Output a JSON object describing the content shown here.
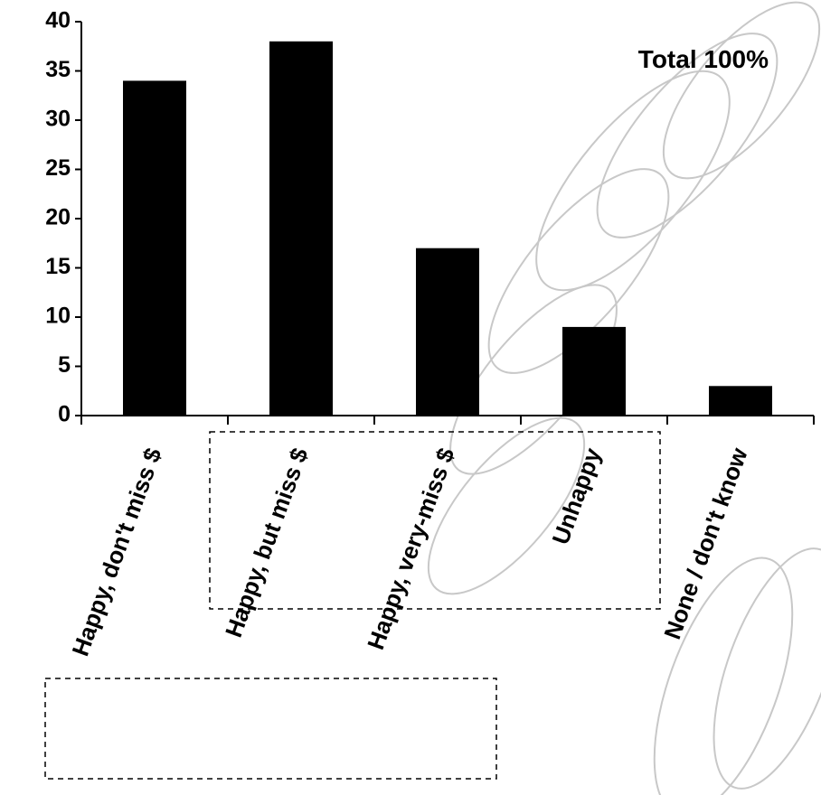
{
  "chart_data": {
    "type": "bar",
    "annotation": "Total 100%",
    "categories": [
      "Happy, don't miss $",
      "Happy, but miss $",
      "Happy, very-miss $",
      "Unhappy",
      "None / don't know"
    ],
    "values": [
      34,
      38,
      17,
      9,
      3
    ],
    "color": "#000000",
    "ylim": [
      0,
      40
    ],
    "yticks": [
      0,
      5,
      10,
      15,
      20,
      25,
      30,
      35,
      40
    ],
    "grid": false
  }
}
